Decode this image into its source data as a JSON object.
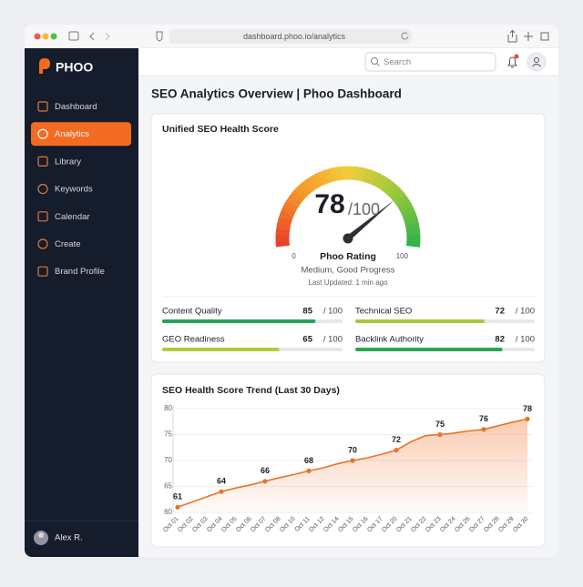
{
  "browser": {
    "url": "dashboard.phoo.io/analytics"
  },
  "sidebar": {
    "brand": "PHOO",
    "nav": [
      {
        "label": "Dashboard",
        "active": false
      },
      {
        "label": "Analytics",
        "active": true
      },
      {
        "label": "Library",
        "active": false
      },
      {
        "label": "Keywords",
        "active": false
      },
      {
        "label": "Calendar",
        "active": false
      },
      {
        "label": "Create",
        "active": false
      },
      {
        "label": "Brand Profile",
        "active": false
      }
    ],
    "user": "Alex R."
  },
  "topbar": {
    "search_placeholder": "Search"
  },
  "page_title": "SEO Analytics Overview | Phoo Dashboard",
  "gauge": {
    "title": "Unified SEO Health Score",
    "value": 78,
    "suffix": "/100",
    "range": [
      0,
      100
    ],
    "ticks": [
      0,
      100
    ],
    "rating_label": "Phoo Rating",
    "status": "Medium, Good Progress",
    "updated": "Last Updated: 1 min ago"
  },
  "metrics": [
    {
      "name": "Content Quality",
      "value": 85,
      "max": 100,
      "max_label": "/ 100",
      "color": "#22a455"
    },
    {
      "name": "Technical SEO",
      "value": 72,
      "max": 100,
      "max_label": "/ 100",
      "color": "#a9c93c"
    },
    {
      "name": "GEO Readiness",
      "value": 65,
      "max": 100,
      "max_label": "/ 100",
      "color": "#b4c93c"
    },
    {
      "name": "Backlink Authority",
      "value": 82,
      "max": 100,
      "max_label": "/ 100",
      "color": "#28a74f"
    }
  ],
  "chart_data": {
    "type": "line",
    "title": "SEO Health Score Trend (Last 30 Days)",
    "categories": [
      "Oct 01",
      "Oct 02",
      "Oct 03",
      "Oct 04",
      "Oct 05",
      "Oct 06",
      "Oct 07",
      "Oct 08",
      "Oct 10",
      "Oct 11",
      "Oct 12",
      "Oct 14",
      "Oct 15",
      "Oct 16",
      "Oct 17",
      "Oct 20",
      "Oct 21",
      "Oct 22",
      "Oct 23",
      "Oct 24",
      "Oct 26",
      "Oct 27",
      "Oct 28",
      "Oct 29",
      "Oct 30"
    ],
    "series": [
      {
        "name": "SEO Health Score",
        "color": "#e8732c",
        "values": [
          61,
          62,
          63,
          64,
          64.7,
          65.3,
          66,
          66.7,
          67.3,
          68,
          68.6,
          69.4,
          70,
          70.5,
          71.2,
          72,
          73.6,
          74.8,
          75,
          75.3,
          75.7,
          76,
          76.7,
          77.4,
          78
        ],
        "value_labels": [
          "61",
          null,
          null,
          "64",
          null,
          null,
          "66",
          null,
          null,
          "68",
          null,
          null,
          "70",
          null,
          null,
          "72",
          null,
          null,
          "75",
          null,
          null,
          "76",
          null,
          null,
          "78"
        ]
      }
    ],
    "ylim": [
      60,
      80
    ],
    "yticks": [
      60,
      65,
      70,
      75,
      80
    ],
    "grid": true
  }
}
